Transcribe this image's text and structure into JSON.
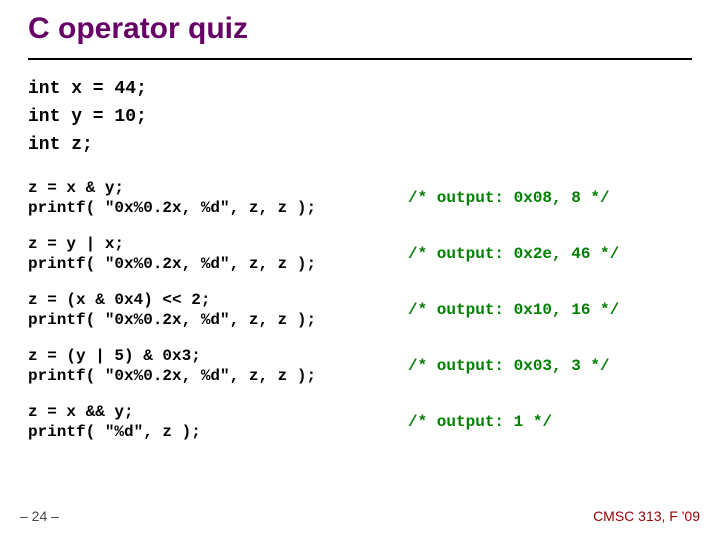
{
  "title": "C operator quiz",
  "colors": {
    "title": "#660066",
    "code": "#000000",
    "output": "#008000",
    "rule": "#000000",
    "footer_left": "#444444",
    "footer_right": "#990000",
    "background": "#ffffff"
  },
  "typography": {
    "title_fontsize_pt": 22,
    "code_fontsize_pt": 12,
    "code_font": "Courier New, monospace",
    "title_font": "Arial, sans-serif",
    "bold": true
  },
  "declarations": "int x = 44;\nint y = 10;\nint z;",
  "blocks": {
    "b1_code": "z = x & y;\nprintf( \"0x%0.2x, %d\", z, z );",
    "b1_out": "/* output: 0x08, 8 */",
    "b2_code": "z = y | x;\nprintf( \"0x%0.2x, %d\", z, z );",
    "b2_out": "/* output: 0x2e, 46 */",
    "b3_code": "z = (x & 0x4) << 2;\nprintf( \"0x%0.2x, %d\", z, z );",
    "b3_out": "/* output: 0x10, 16 */",
    "b4_code": "z = (y | 5) & 0x3;\nprintf( \"0x%0.2x, %d\", z, z );",
    "b4_out": "/* output: 0x03, 3 */",
    "b5_code": "z = x && y;\nprintf( \"%d\", z );",
    "b5_out": "/* output: 1 */"
  },
  "footer": {
    "left": "– 24 –",
    "right": "CMSC 313, F '09"
  }
}
